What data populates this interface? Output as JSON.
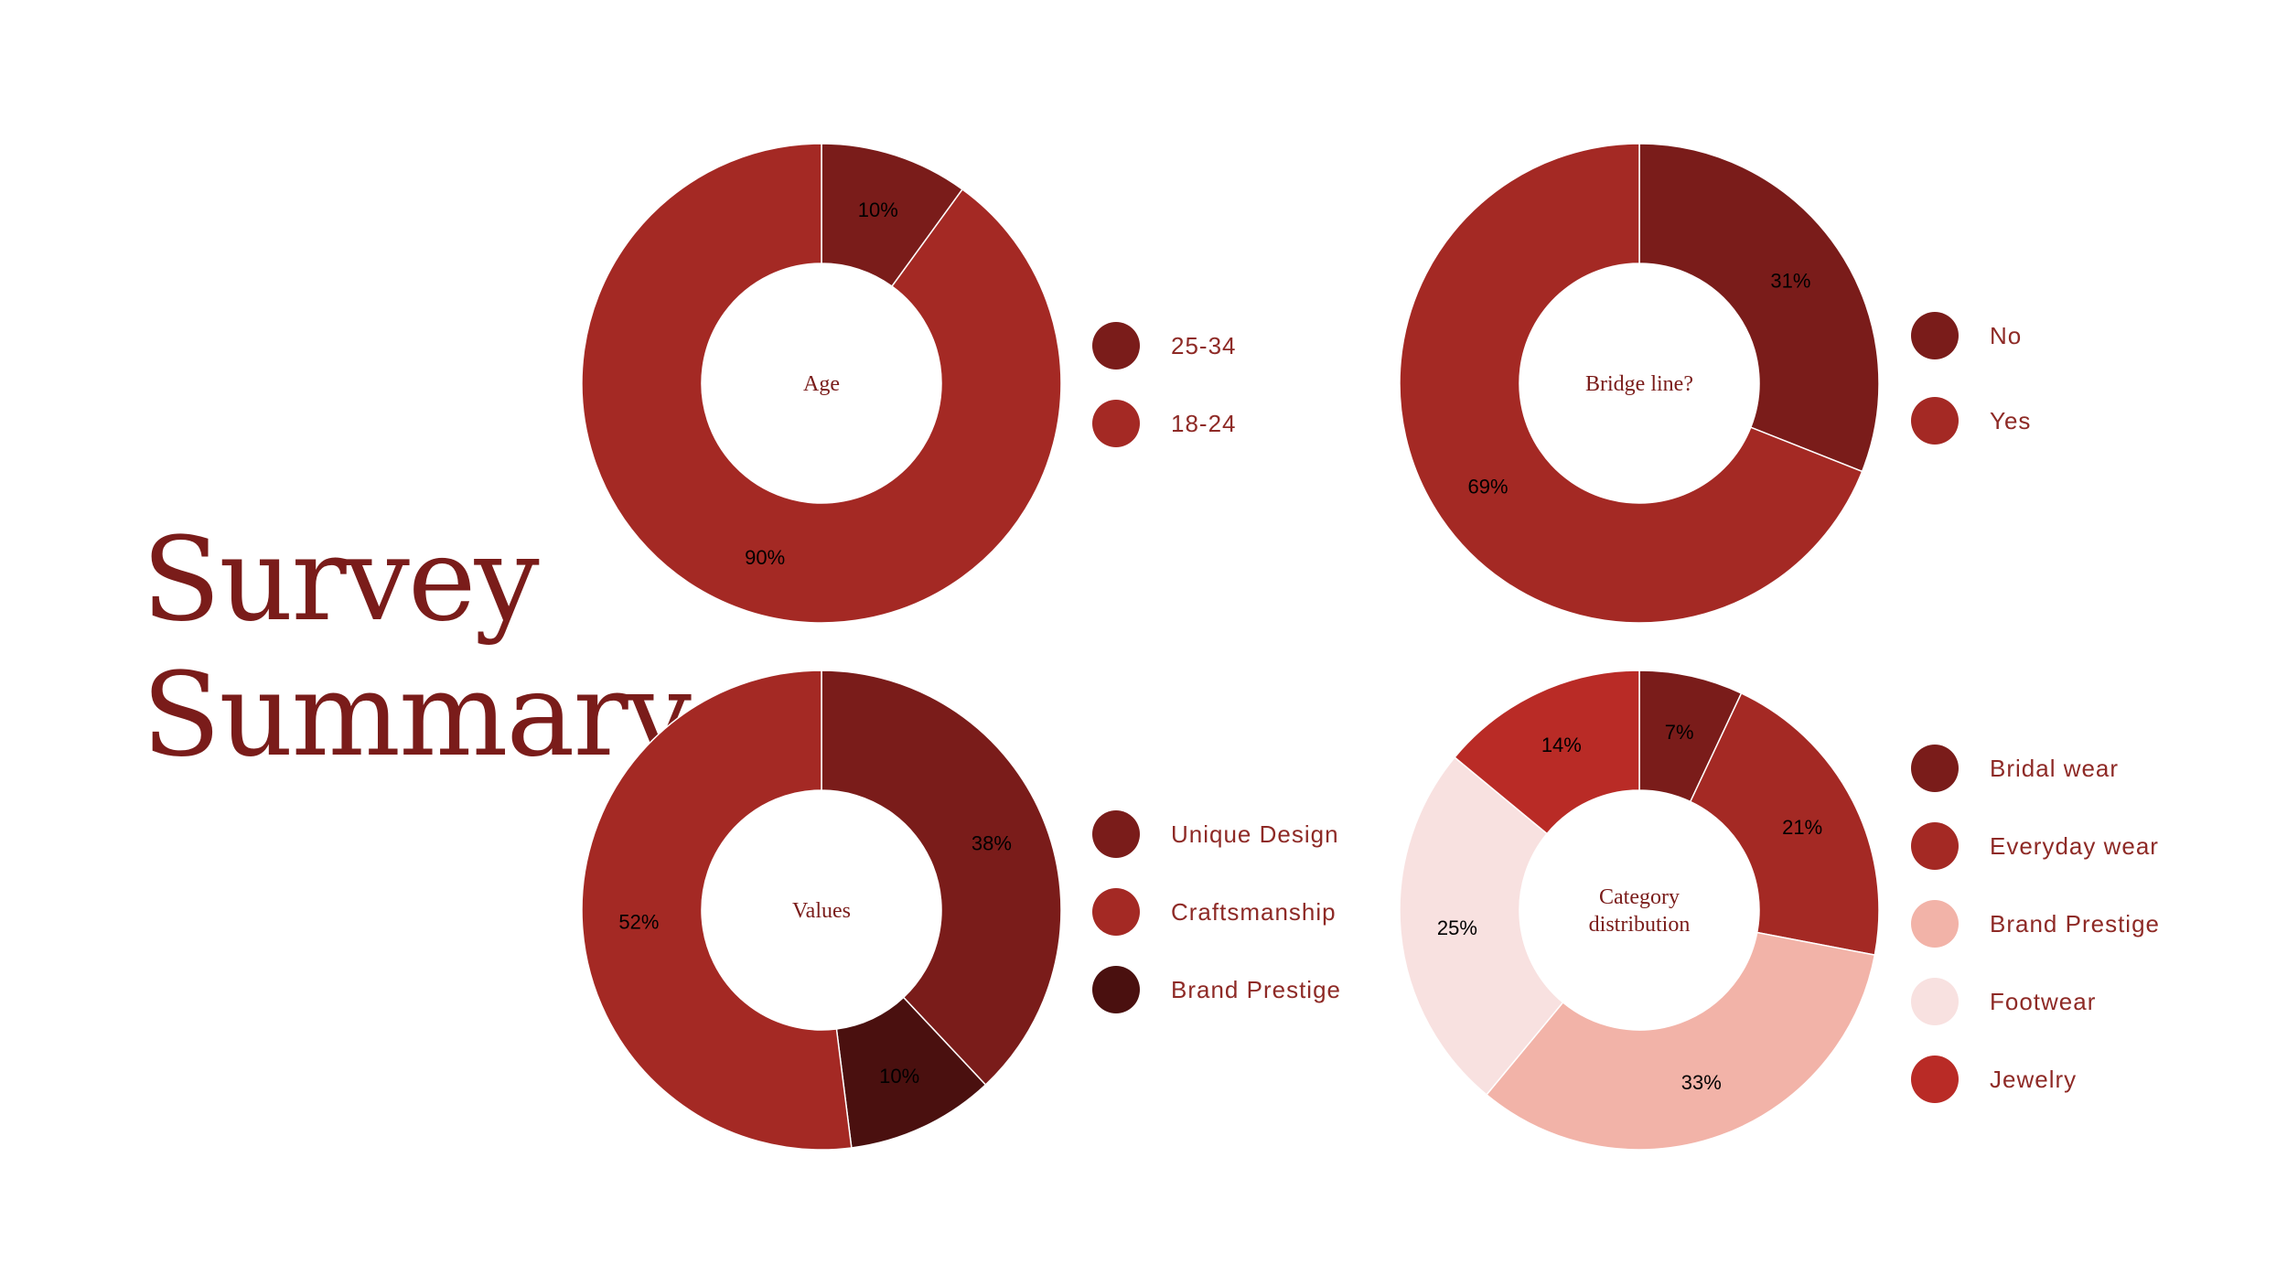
{
  "page": {
    "title_lines": [
      "Survey",
      "Summary"
    ]
  },
  "chart_data": [
    {
      "type": "pie",
      "center_label": "Age",
      "slices": [
        {
          "label": "25-34",
          "value": 10,
          "display": "10%",
          "color": "#7a1c1a"
        },
        {
          "label": "18-24",
          "value": 90,
          "display": "90%",
          "color": "#a42924"
        }
      ]
    },
    {
      "type": "pie",
      "center_label": "Bridge line?",
      "slices": [
        {
          "label": "No",
          "value": 31,
          "display": "31%",
          "color": "#7a1c1a"
        },
        {
          "label": "Yes",
          "value": 69,
          "display": "69%",
          "color": "#a42924"
        }
      ]
    },
    {
      "type": "pie",
      "center_label": "Values",
      "slices": [
        {
          "label": "Unique Design",
          "value": 38,
          "display": "38%",
          "color": "#7a1c1a"
        },
        {
          "label": "Brand Prestige",
          "value": 10,
          "display": "10%",
          "color": "#4a100f"
        },
        {
          "label": "Craftsmanship",
          "value": 52,
          "display": "52%",
          "color": "#a42924"
        }
      ],
      "legend_order": [
        "Unique Design",
        "Craftsmanship",
        "Brand Prestige"
      ]
    },
    {
      "type": "pie",
      "center_label": "Category distribution",
      "center_label_lines": [
        "Category",
        "distribution"
      ],
      "slices": [
        {
          "label": "Bridal wear",
          "value": 7,
          "display": "7%",
          "color": "#7a1c1a"
        },
        {
          "label": "Everyday wear",
          "value": 21,
          "display": "21%",
          "color": "#a42924"
        },
        {
          "label": "Brand Prestige",
          "value": 33,
          "display": "33%",
          "color": "#f2b3a8"
        },
        {
          "label": "Footwear",
          "value": 25,
          "display": "25%",
          "color": "#f8e1e0"
        },
        {
          "label": "Jewelry",
          "value": 14,
          "display": "14%",
          "color": "#b92b26"
        }
      ]
    }
  ]
}
